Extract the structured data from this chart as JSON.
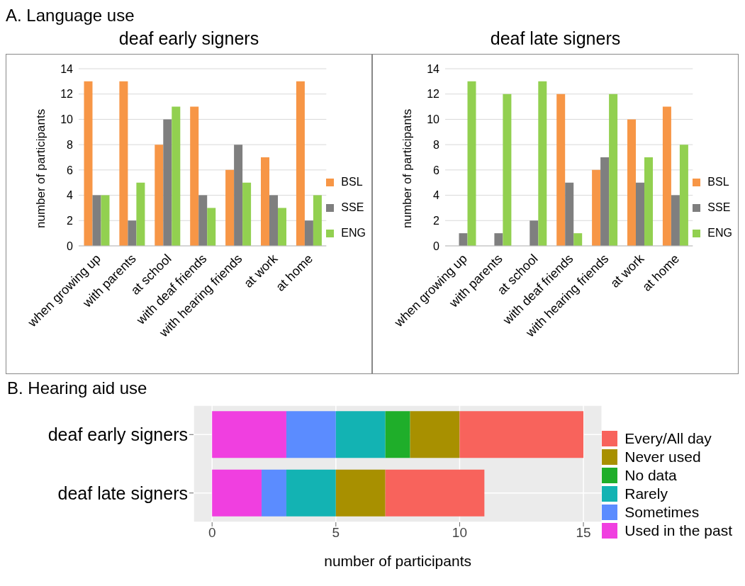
{
  "chart_data": [
    {
      "type": "bar",
      "annotations": [
        "A. Language use"
      ],
      "title": "deaf early signers",
      "ylabel": "number of participants",
      "categories": [
        "when growing up",
        "with parents",
        "at school",
        "with deaf friends",
        "with hearing friends",
        "at work",
        "at home"
      ],
      "series": [
        {
          "name": "BSL",
          "color": "#f79646",
          "values": [
            13,
            13,
            8,
            11,
            6,
            7,
            13
          ]
        },
        {
          "name": "SSE",
          "color": "#7f7f7f",
          "values": [
            4,
            2,
            10,
            4,
            8,
            4,
            2
          ]
        },
        {
          "name": "ENG",
          "color": "#92d050",
          "values": [
            4,
            5,
            11,
            3,
            5,
            3,
            4
          ]
        }
      ],
      "ylim": [
        0,
        14
      ],
      "yticks": [
        0,
        2,
        4,
        6,
        8,
        10,
        12,
        14
      ],
      "grid": "y",
      "legend": "right"
    },
    {
      "type": "bar",
      "title": "deaf late signers",
      "ylabel": "number of participants",
      "categories": [
        "when growing up",
        "with parents",
        "at school",
        "with deaf friends",
        "with hearing friends",
        "at work",
        "at home"
      ],
      "series": [
        {
          "name": "BSL",
          "color": "#f79646",
          "values": [
            0,
            0,
            0,
            12,
            6,
            10,
            11
          ]
        },
        {
          "name": "SSE",
          "color": "#7f7f7f",
          "values": [
            1,
            1,
            2,
            5,
            7,
            5,
            4
          ]
        },
        {
          "name": "ENG",
          "color": "#92d050",
          "values": [
            13,
            12,
            13,
            1,
            12,
            7,
            8
          ]
        }
      ],
      "ylim": [
        0,
        14
      ],
      "yticks": [
        0,
        2,
        4,
        6,
        8,
        10,
        12,
        14
      ],
      "grid": "y",
      "legend": "right"
    },
    {
      "type": "bar",
      "orientation": "horizontal",
      "stacked": true,
      "title": "B. Hearing aid use",
      "xlabel": "number of participants",
      "categories": [
        "deaf early signers",
        "deaf late signers"
      ],
      "series": [
        {
          "name": "Used in the past",
          "color": "#f03fe0",
          "values": [
            3,
            2
          ]
        },
        {
          "name": "Sometimes",
          "color": "#5b8cff",
          "values": [
            2,
            1
          ]
        },
        {
          "name": "Rarely",
          "color": "#13b3b3",
          "values": [
            2,
            2
          ]
        },
        {
          "name": "No data",
          "color": "#1fae2a",
          "values": [
            1,
            0
          ]
        },
        {
          "name": "Never used",
          "color": "#a89000",
          "values": [
            2,
            2
          ]
        },
        {
          "name": "Every/All day",
          "color": "#f8635c",
          "values": [
            5,
            4
          ]
        }
      ],
      "xlim": [
        -0.75,
        15.75
      ],
      "xticks": [
        0,
        5,
        10,
        15
      ],
      "grid": true,
      "legend": "right"
    }
  ]
}
